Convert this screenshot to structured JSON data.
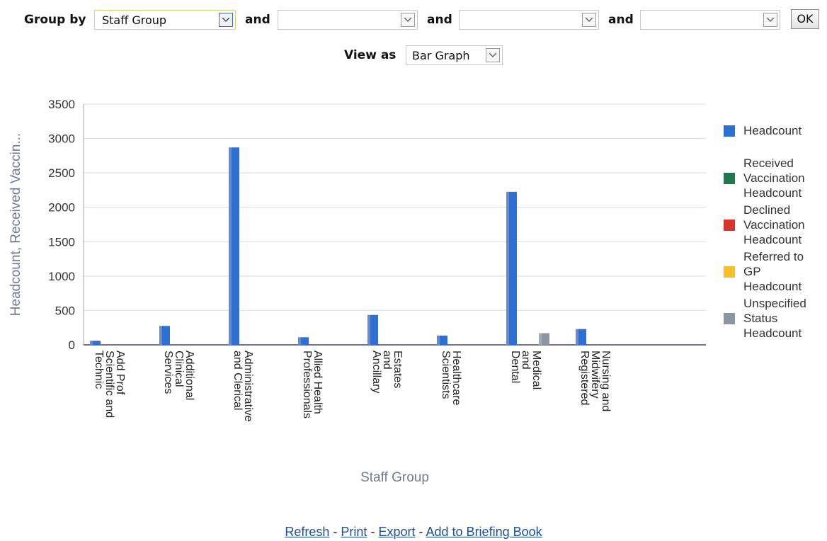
{
  "toolbar": {
    "group_by_label": "Group by",
    "and_label": "and",
    "group_by_value": "Staff Group",
    "select2_value": "",
    "select3_value": "",
    "select4_value": "",
    "ok_label": "OK"
  },
  "view": {
    "label": "View as",
    "value": "Bar Graph"
  },
  "chart_data": {
    "type": "bar",
    "title": "",
    "xlabel": "Staff Group",
    "ylabel": "Headcount, Received Vaccin...",
    "ylim": [
      0,
      3500
    ],
    "yticks": [
      0,
      500,
      1000,
      1500,
      2000,
      2500,
      3000,
      3500
    ],
    "grid": true,
    "legend_position": "right",
    "categories": [
      "Add Prof Scientific and Technic",
      "Additional Clinical Services",
      "Administrative and Clerical",
      "Allied Health Professionals",
      "Estates and Ancillary",
      "Healthcare Scientists",
      "Medical and Dental",
      "Nursing and Midwifery Registered"
    ],
    "category_lines": [
      [
        "Add Prof",
        "Scientific and",
        "Technic"
      ],
      [
        "Additional",
        "Clinical",
        "Services"
      ],
      [
        "Administrative",
        "and Clerical"
      ],
      [
        "Allied Health",
        "Professionals"
      ],
      [
        "Estates",
        "and",
        "Ancillary"
      ],
      [
        "Healthcare",
        "Scientists"
      ],
      [
        "Medical",
        "and",
        "Dental"
      ],
      [
        "Nursing and",
        "Midwifery",
        "Registered"
      ]
    ],
    "series": [
      {
        "name": "Headcount",
        "color": "#2d6fd2",
        "values": [
          60,
          275,
          2870,
          110,
          435,
          135,
          2225,
          230
        ]
      },
      {
        "name": "Received Vaccination Headcount",
        "color": "#1e7a4e",
        "values": [
          0,
          0,
          0,
          0,
          0,
          0,
          0,
          0
        ]
      },
      {
        "name": "Declined Vaccination Headcount",
        "color": "#d9342b",
        "values": [
          0,
          0,
          0,
          0,
          0,
          0,
          0,
          0
        ]
      },
      {
        "name": "Referred to GP Headcount",
        "color": "#f7bc2c",
        "values": [
          0,
          0,
          0,
          0,
          0,
          0,
          0,
          0
        ]
      },
      {
        "name": "Unspecified Status Headcount",
        "color": "#8a96a3",
        "values": [
          0,
          0,
          0,
          0,
          0,
          0,
          170,
          0
        ]
      }
    ],
    "legend_lines": [
      [
        "Headcount"
      ],
      [
        "Received",
        "Vaccination",
        "Headcount"
      ],
      [
        "Declined",
        "Vaccination",
        "Headcount"
      ],
      [
        "Referred to",
        "GP",
        "Headcount"
      ],
      [
        "Unspecified",
        "Status",
        "Headcount"
      ]
    ]
  },
  "footer": {
    "refresh": "Refresh",
    "print": "Print",
    "export": "Export",
    "briefing": "Add to Briefing Book"
  }
}
